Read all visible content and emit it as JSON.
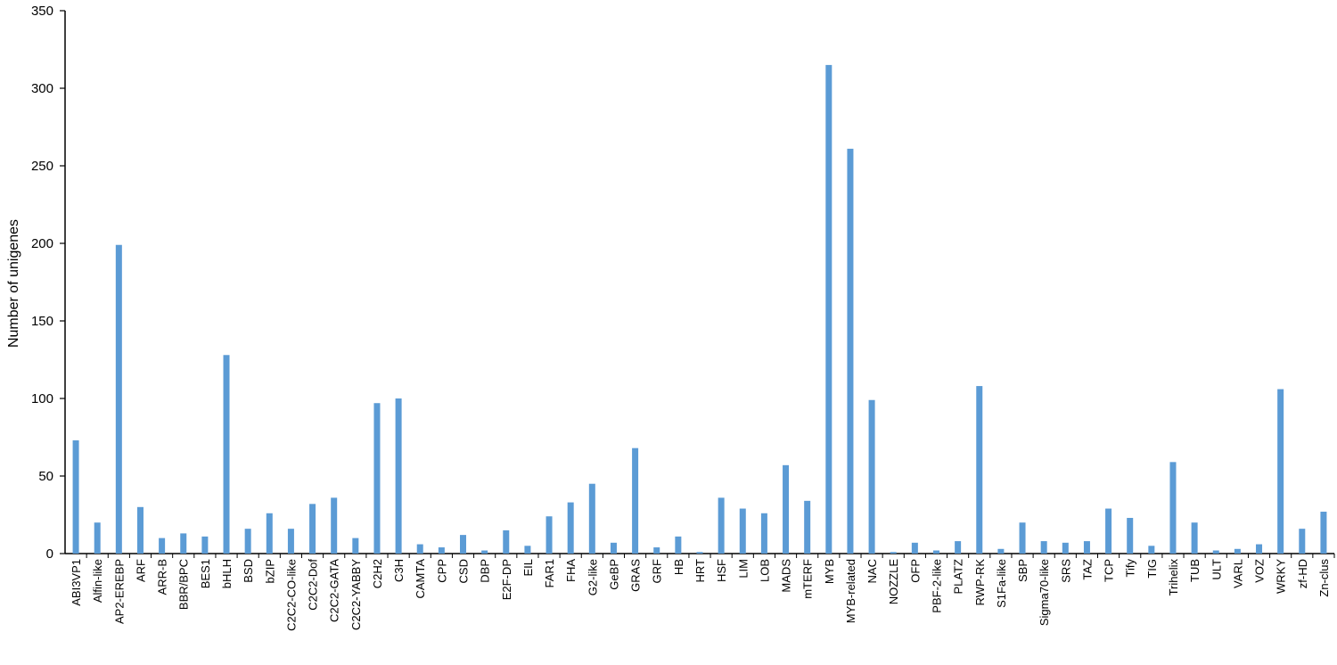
{
  "chart_data": {
    "type": "bar",
    "title": "",
    "xlabel": "",
    "ylabel": "Number of unigenes",
    "ylim": [
      0,
      350
    ],
    "yticks": [
      "0",
      "50",
      "100",
      "150",
      "200",
      "250",
      "300",
      "350"
    ],
    "grid": false,
    "legend": "none",
    "bar_color": "#5B9BD5",
    "categories": [
      "ABI3VP1",
      "Alfin-like",
      "AP2-EREBP",
      "ARF",
      "ARR-B",
      "BBR/BPC",
      "BES1",
      "bHLH",
      "BSD",
      "bZIP",
      "C2C2-CO-like",
      "C2C2-Dof",
      "C2C2-GATA",
      "C2C2-YABBY",
      "C2H2",
      "C3H",
      "CAMTA",
      "CPP",
      "CSD",
      "DBP",
      "E2F-DP",
      "EIL",
      "FAR1",
      "FHA",
      "G2-like",
      "GeBP",
      "GRAS",
      "GRF",
      "HB",
      "HRT",
      "HSF",
      "LIM",
      "LOB",
      "MADS",
      "mTERF",
      "MYB",
      "MYB-related",
      "NAC",
      "NOZZLE",
      "OFP",
      "PBF-2-like",
      "PLATZ",
      "RWP-RK",
      "S1Fa-like",
      "SBP",
      "Sigma70-like",
      "SRS",
      "TAZ",
      "TCP",
      "Tify",
      "TIG",
      "Trihelix",
      "TUB",
      "ULT",
      "VARL",
      "VOZ",
      "WRKY",
      "zf-HD",
      "Zn-clus"
    ],
    "values": [
      73,
      20,
      199,
      30,
      10,
      13,
      11,
      128,
      16,
      26,
      16,
      32,
      36,
      10,
      97,
      100,
      6,
      4,
      12,
      2,
      15,
      5,
      24,
      33,
      45,
      7,
      68,
      4,
      11,
      1,
      36,
      29,
      26,
      57,
      34,
      315,
      261,
      99,
      1,
      7,
      2,
      8,
      108,
      3,
      20,
      8,
      7,
      8,
      29,
      23,
      5,
      59,
      20,
      2,
      3,
      6,
      106,
      16,
      27
    ]
  }
}
